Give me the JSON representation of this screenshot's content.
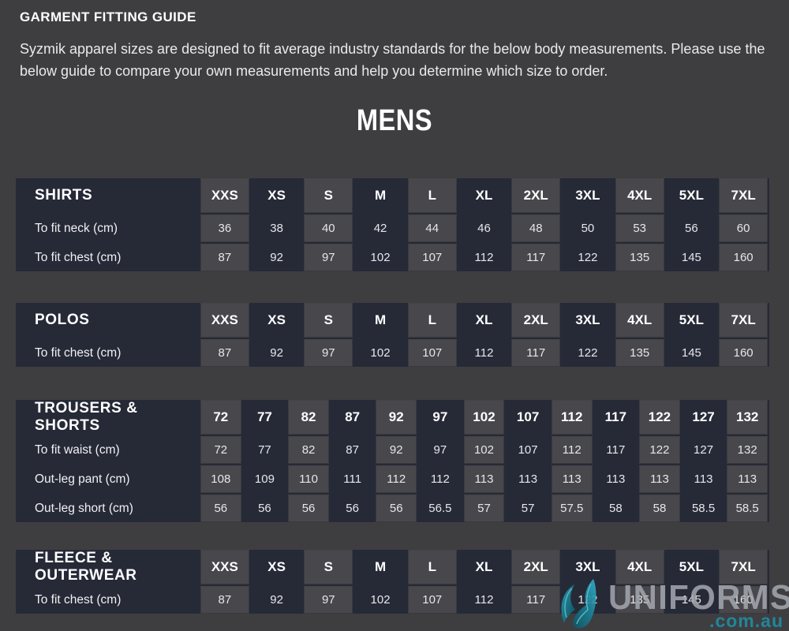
{
  "page": {
    "title": "GARMENT FITTING GUIDE",
    "intro": "Syzmik apparel sizes are designed to fit average industry standards for the below body measurements. Please use the below guide to compare your own measurements and help you determine which size to order.",
    "section_heading": "MENS"
  },
  "colors": {
    "page_bg": "#3e3e41",
    "table_bg": "#262a37",
    "alt_column_bg": "#47474c",
    "heading_text": "#ffffff",
    "body_text": "#eaeaec",
    "logo_silver": "#a6a8b0",
    "logo_teal": "#208a9e"
  },
  "tables": [
    {
      "id": "shirts",
      "name": "SHIRTS",
      "columns": [
        "XXS",
        "XS",
        "S",
        "M",
        "L",
        "XL",
        "2XL",
        "3XL",
        "4XL",
        "5XL",
        "7XL"
      ],
      "rows": [
        {
          "label": "To fit neck (cm)",
          "values": [
            "36",
            "38",
            "40",
            "42",
            "44",
            "46",
            "48",
            "50",
            "53",
            "56",
            "60"
          ]
        },
        {
          "label": "To fit chest (cm)",
          "values": [
            "87",
            "92",
            "97",
            "102",
            "107",
            "112",
            "117",
            "122",
            "135",
            "145",
            "160"
          ]
        }
      ]
    },
    {
      "id": "polos",
      "name": "POLOS",
      "columns": [
        "XXS",
        "XS",
        "S",
        "M",
        "L",
        "XL",
        "2XL",
        "3XL",
        "4XL",
        "5XL",
        "7XL"
      ],
      "rows": [
        {
          "label": "To fit chest (cm)",
          "values": [
            "87",
            "92",
            "97",
            "102",
            "107",
            "112",
            "117",
            "122",
            "135",
            "145",
            "160"
          ]
        }
      ]
    },
    {
      "id": "trousers-shorts",
      "name": "TROUSERS & SHORTS",
      "columns": [
        "72",
        "77",
        "82",
        "87",
        "92",
        "97",
        "102",
        "107",
        "112",
        "117",
        "122",
        "127",
        "132"
      ],
      "rows": [
        {
          "label": "To fit waist (cm)",
          "values": [
            "72",
            "77",
            "82",
            "87",
            "92",
            "97",
            "102",
            "107",
            "112",
            "117",
            "122",
            "127",
            "132"
          ]
        },
        {
          "label": "Out-leg pant (cm)",
          "values": [
            "108",
            "109",
            "110",
            "111",
            "112",
            "112",
            "113",
            "113",
            "113",
            "113",
            "113",
            "113",
            "113"
          ]
        },
        {
          "label": "Out-leg short (cm)",
          "values": [
            "56",
            "56",
            "56",
            "56",
            "56",
            "56.5",
            "57",
            "57",
            "57.5",
            "58",
            "58",
            "58.5",
            "58.5"
          ]
        }
      ]
    },
    {
      "id": "fleece-outerwear",
      "name": "FLEECE & OUTERWEAR",
      "columns": [
        "XXS",
        "XS",
        "S",
        "M",
        "L",
        "XL",
        "2XL",
        "3XL",
        "4XL",
        "5XL",
        "7XL"
      ],
      "rows": [
        {
          "label": "To fit chest (cm)",
          "values": [
            "87",
            "92",
            "97",
            "102",
            "107",
            "112",
            "117",
            "122",
            "135",
            "145",
            "160"
          ]
        }
      ]
    }
  ],
  "logo": {
    "brand": "UNIFORMS",
    "domain": ".com.au",
    "icon": "uniforms-leaf-icon"
  }
}
